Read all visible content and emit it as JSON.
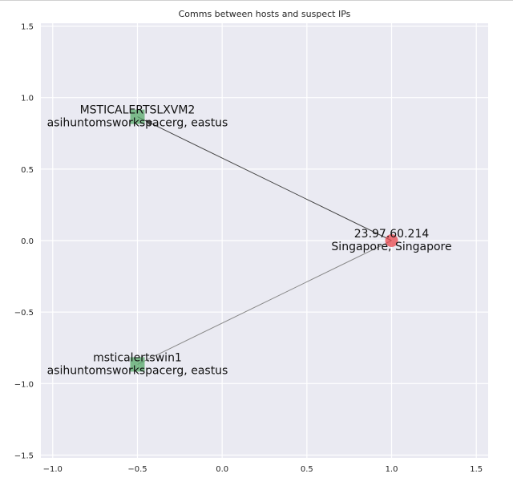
{
  "chart_data": {
    "type": "scatter",
    "title": "Comms between hosts and suspect IPs",
    "xlabel": "",
    "ylabel": "",
    "xlim": [
      -1.07,
      1.57
    ],
    "ylim": [
      -1.52,
      1.52
    ],
    "xticks": [
      -1.0,
      -0.5,
      0.0,
      0.5,
      1.0,
      1.5
    ],
    "xtick_labels": [
      "−1.0",
      "−0.5",
      "0.0",
      "0.5",
      "1.0",
      "1.5"
    ],
    "yticks": [
      -1.5,
      -1.0,
      -0.5,
      0.0,
      0.5,
      1.0,
      1.5
    ],
    "ytick_labels": [
      "−1.5",
      "−1.0",
      "−0.5",
      "0.0",
      "0.5",
      "1.0",
      "1.5"
    ],
    "grid": true,
    "background_color": "#eaeaf2",
    "grid_color": "#ffffff",
    "nodes": [
      {
        "id": "host1",
        "kind": "host",
        "shape": "square",
        "color": "#55a868",
        "x": -0.5,
        "y": 0.866,
        "label_line1": "MSTICALERTSLXVM2",
        "label_line2": "asihuntomsworkspacerg, eastus"
      },
      {
        "id": "host2",
        "kind": "host",
        "shape": "square",
        "color": "#55a868",
        "x": -0.5,
        "y": -0.866,
        "label_line1": "msticalertswin1",
        "label_line2": "asihuntomsworkspacerg, eastus"
      },
      {
        "id": "ip1",
        "kind": "ip",
        "shape": "circle",
        "color": "#e8474c",
        "x": 1.0,
        "y": 0.0,
        "label_line1": "23.97.60.214",
        "label_line2": "Singapore, Singapore"
      }
    ],
    "edges": [
      {
        "source": "host1",
        "target": "ip1",
        "color": "#444444",
        "directed": true
      },
      {
        "source": "host2",
        "target": "ip1",
        "color": "#888888",
        "directed": false
      }
    ]
  }
}
